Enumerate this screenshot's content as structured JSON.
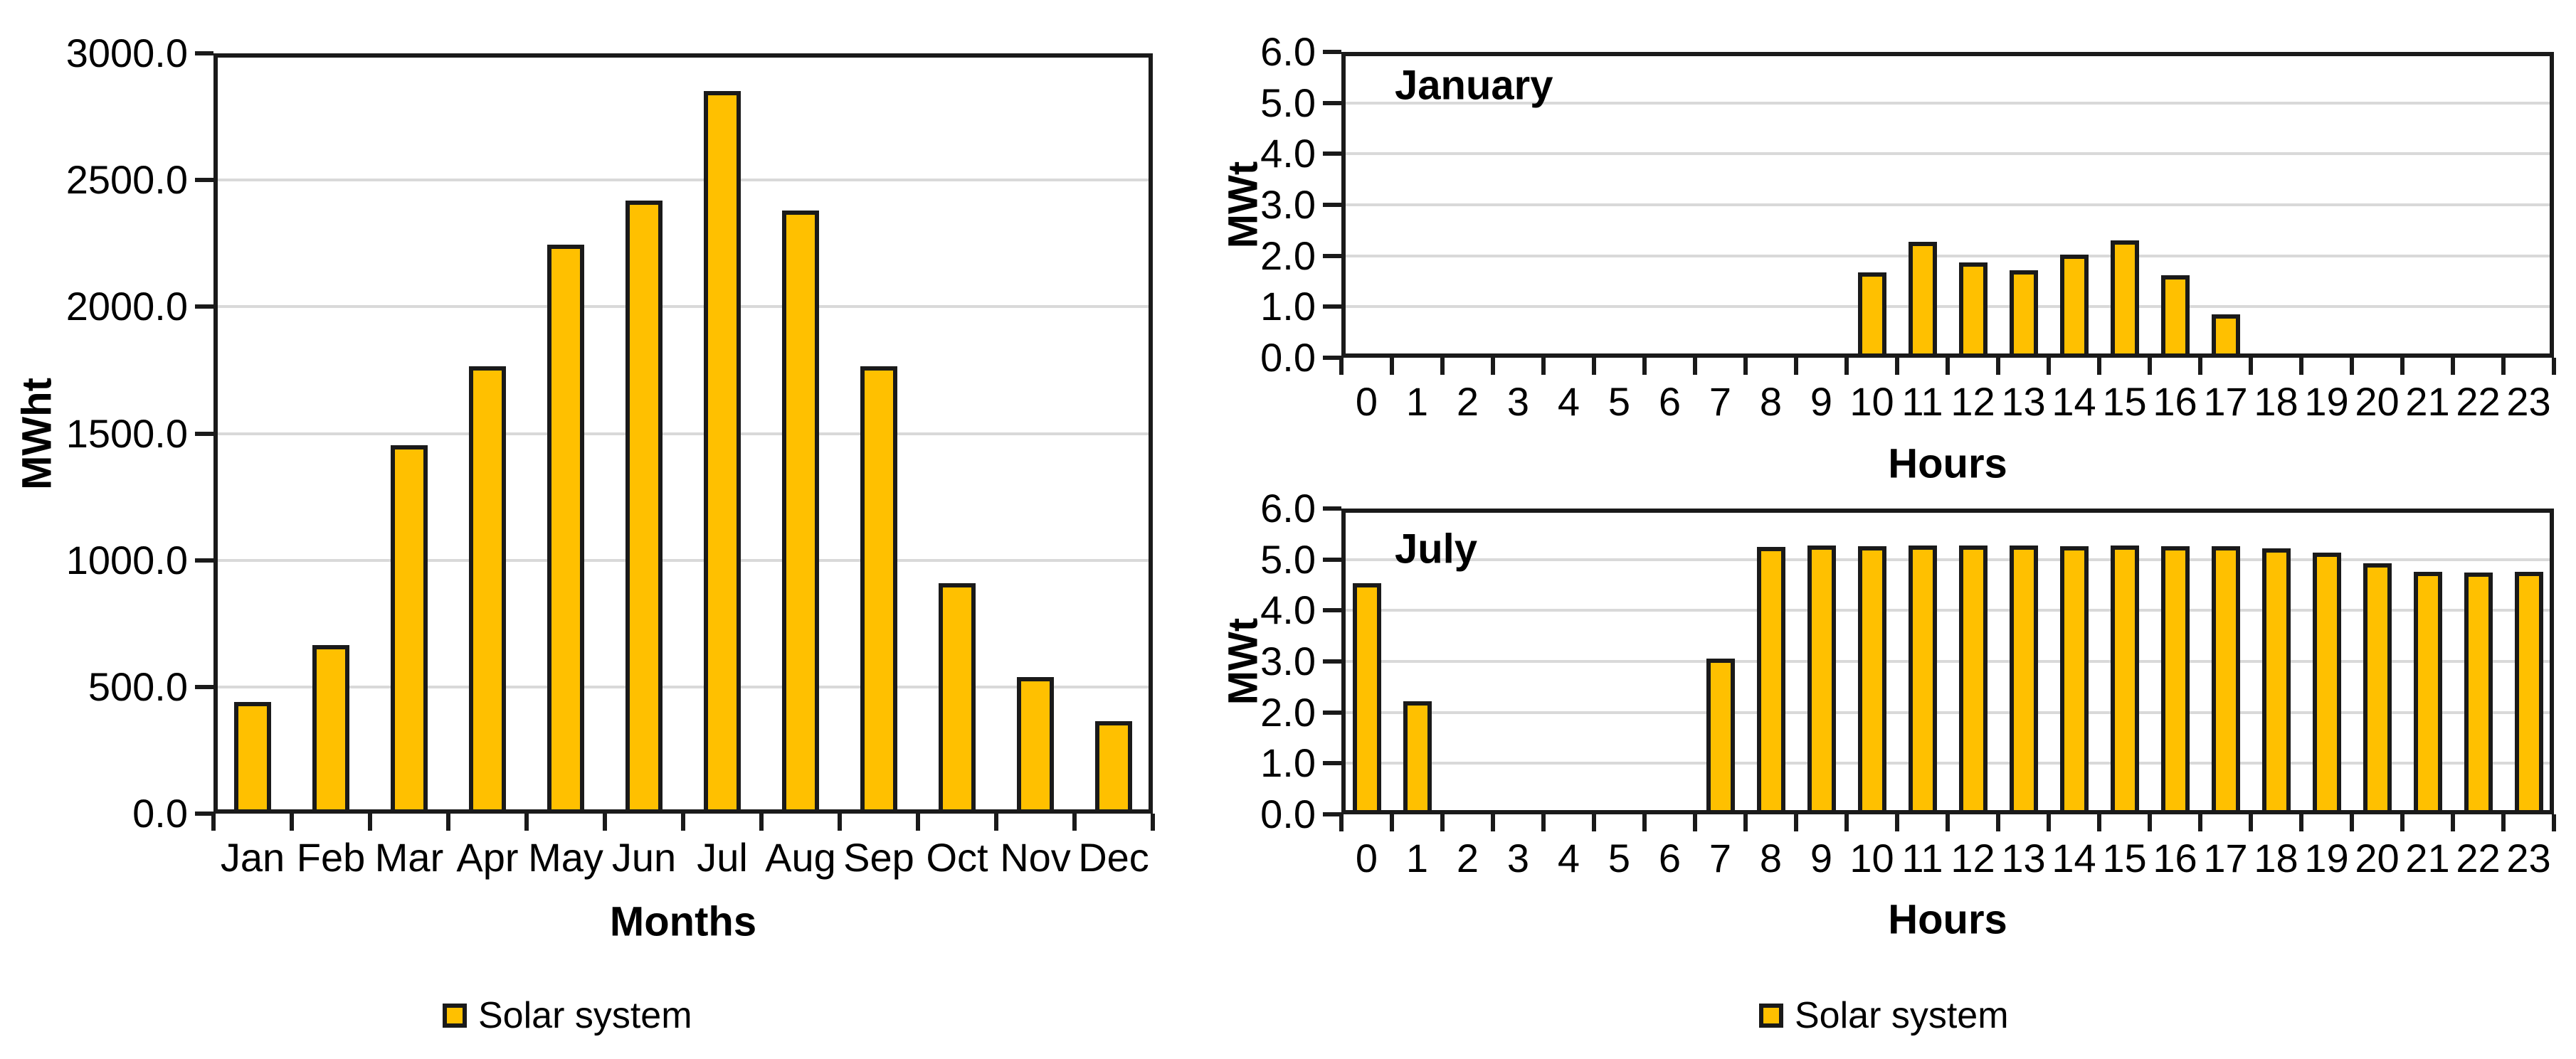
{
  "colors": {
    "bar_fill": "#FFC000",
    "bar_border": "#1A1A1A",
    "gridline": "#D9D9D9",
    "axis": "#1A1A1A",
    "text": "#000000",
    "background": "#FFFFFF"
  },
  "chart_data": [
    {
      "id": "monthly-generation",
      "type": "bar",
      "title": "",
      "xlabel": "Months",
      "ylabel": "MWht",
      "categories": [
        "Jan",
        "Feb",
        "Mar",
        "Apr",
        "May",
        "Jun",
        "Jul",
        "Aug",
        "Sep",
        "Oct",
        "Nov",
        "Dec"
      ],
      "values": [
        440,
        665,
        1455,
        1765,
        2245,
        2420,
        2850,
        2380,
        1765,
        910,
        540,
        365
      ],
      "ylim": [
        0,
        3000
      ],
      "ytick_step": 500,
      "ytick_labels": [
        "0.0",
        "500.0",
        "1000.0",
        "1500.0",
        "2000.0",
        "2500.0",
        "3000.0"
      ],
      "grid": true,
      "legend_label": "Solar system",
      "legend_position": "bottom"
    },
    {
      "id": "january-hourly",
      "type": "bar",
      "inner_label": "January",
      "xlabel": "Hours",
      "ylabel": "MWt",
      "categories": [
        "0",
        "1",
        "2",
        "3",
        "4",
        "5",
        "6",
        "7",
        "8",
        "9",
        "10",
        "11",
        "12",
        "13",
        "14",
        "15",
        "16",
        "17",
        "18",
        "19",
        "20",
        "21",
        "22",
        "23"
      ],
      "values": [
        0,
        0,
        0,
        0,
        0,
        0,
        0,
        0,
        0,
        0,
        1.67,
        2.27,
        1.87,
        1.72,
        2.02,
        2.3,
        1.62,
        0.85,
        0,
        0,
        0,
        0,
        0,
        0
      ],
      "ylim": [
        0,
        6
      ],
      "ytick_step": 1,
      "ytick_labels": [
        "0.0",
        "1.0",
        "2.0",
        "3.0",
        "4.0",
        "5.0",
        "6.0"
      ],
      "grid": true
    },
    {
      "id": "july-hourly",
      "type": "bar",
      "inner_label": "July",
      "xlabel": "Hours",
      "ylabel": "MWt",
      "categories": [
        "0",
        "1",
        "2",
        "3",
        "4",
        "5",
        "6",
        "7",
        "8",
        "9",
        "10",
        "11",
        "12",
        "13",
        "14",
        "15",
        "16",
        "17",
        "18",
        "19",
        "20",
        "21",
        "22",
        "23"
      ],
      "values": [
        4.53,
        2.22,
        0,
        0,
        0,
        0,
        0,
        3.05,
        5.25,
        5.27,
        5.26,
        5.27,
        5.27,
        5.27,
        5.26,
        5.28,
        5.26,
        5.26,
        5.22,
        5.13,
        4.93,
        4.76,
        4.74,
        4.76
      ],
      "ylim": [
        0,
        6
      ],
      "ytick_step": 1,
      "ytick_labels": [
        "0.0",
        "1.0",
        "2.0",
        "3.0",
        "4.0",
        "5.0",
        "6.0"
      ],
      "grid": true,
      "legend_label": "Solar system",
      "legend_position": "bottom"
    }
  ]
}
